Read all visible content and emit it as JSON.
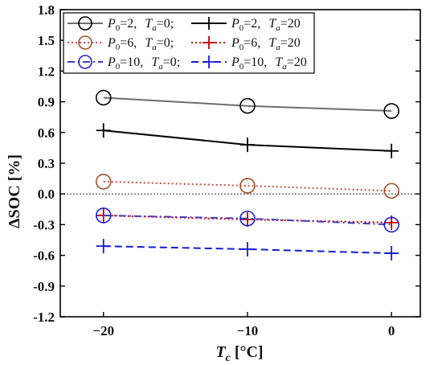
{
  "chart_data": {
    "type": "line",
    "xlabel": "T_c [°C]",
    "ylabel": "ΔSOC [%]",
    "xlim": [
      -23,
      2
    ],
    "ylim": [
      -1.2,
      1.8
    ],
    "x_ticks": [
      -20,
      -10,
      0
    ],
    "y_ticks": [
      -1.2,
      -0.9,
      -0.6,
      -0.3,
      0.0,
      0.3,
      0.6,
      0.9,
      1.2,
      1.5,
      1.8
    ],
    "reference_line": {
      "y": 0.0,
      "style": "dotted"
    },
    "grid": false,
    "legend_placement": "top",
    "x": [
      -20,
      -10,
      0
    ],
    "series": [
      {
        "name": "P0=2, Ta=0;",
        "legend": {
          "p": "2",
          "t": "0;"
        },
        "marker": "circle",
        "line": "solid",
        "color": "#6e6e6e",
        "marker_color": "#000000",
        "values": [
          0.94,
          0.86,
          0.81
        ]
      },
      {
        "name": "P0=2, Ta=20",
        "legend": {
          "p": "2",
          "t": "20"
        },
        "marker": "plus",
        "line": "solid",
        "color": "#000000",
        "marker_color": "#000000",
        "values": [
          0.62,
          0.48,
          0.42
        ]
      },
      {
        "name": "P0=6, Ta=0;",
        "legend": {
          "p": "6",
          "t": "0;"
        },
        "marker": "circle",
        "line": "dotted",
        "color": "#c0504d",
        "marker_color": "#a0522d",
        "values": [
          0.12,
          0.08,
          0.03
        ]
      },
      {
        "name": "P0=6, Ta=20",
        "legend": {
          "p": "6",
          "t": "20"
        },
        "marker": "plus",
        "line": "dotted",
        "color": "#c00000",
        "marker_color": "#c00000",
        "values": [
          -0.21,
          -0.25,
          -0.28
        ]
      },
      {
        "name": "P0=10, Ta=0;",
        "legend": {
          "p": "10",
          "t": "0;"
        },
        "marker": "circle",
        "line": "dashdot",
        "color": "#4040c0",
        "marker_color": "#2020d0",
        "values": [
          -0.21,
          -0.24,
          -0.3
        ]
      },
      {
        "name": "P0=10, Ta=20",
        "legend": {
          "p": "10",
          "t": "20"
        },
        "marker": "plus",
        "line": "dashed",
        "color": "#1a1acc",
        "marker_color": "#1a1acc",
        "values": [
          -0.51,
          -0.54,
          -0.58
        ]
      }
    ]
  }
}
